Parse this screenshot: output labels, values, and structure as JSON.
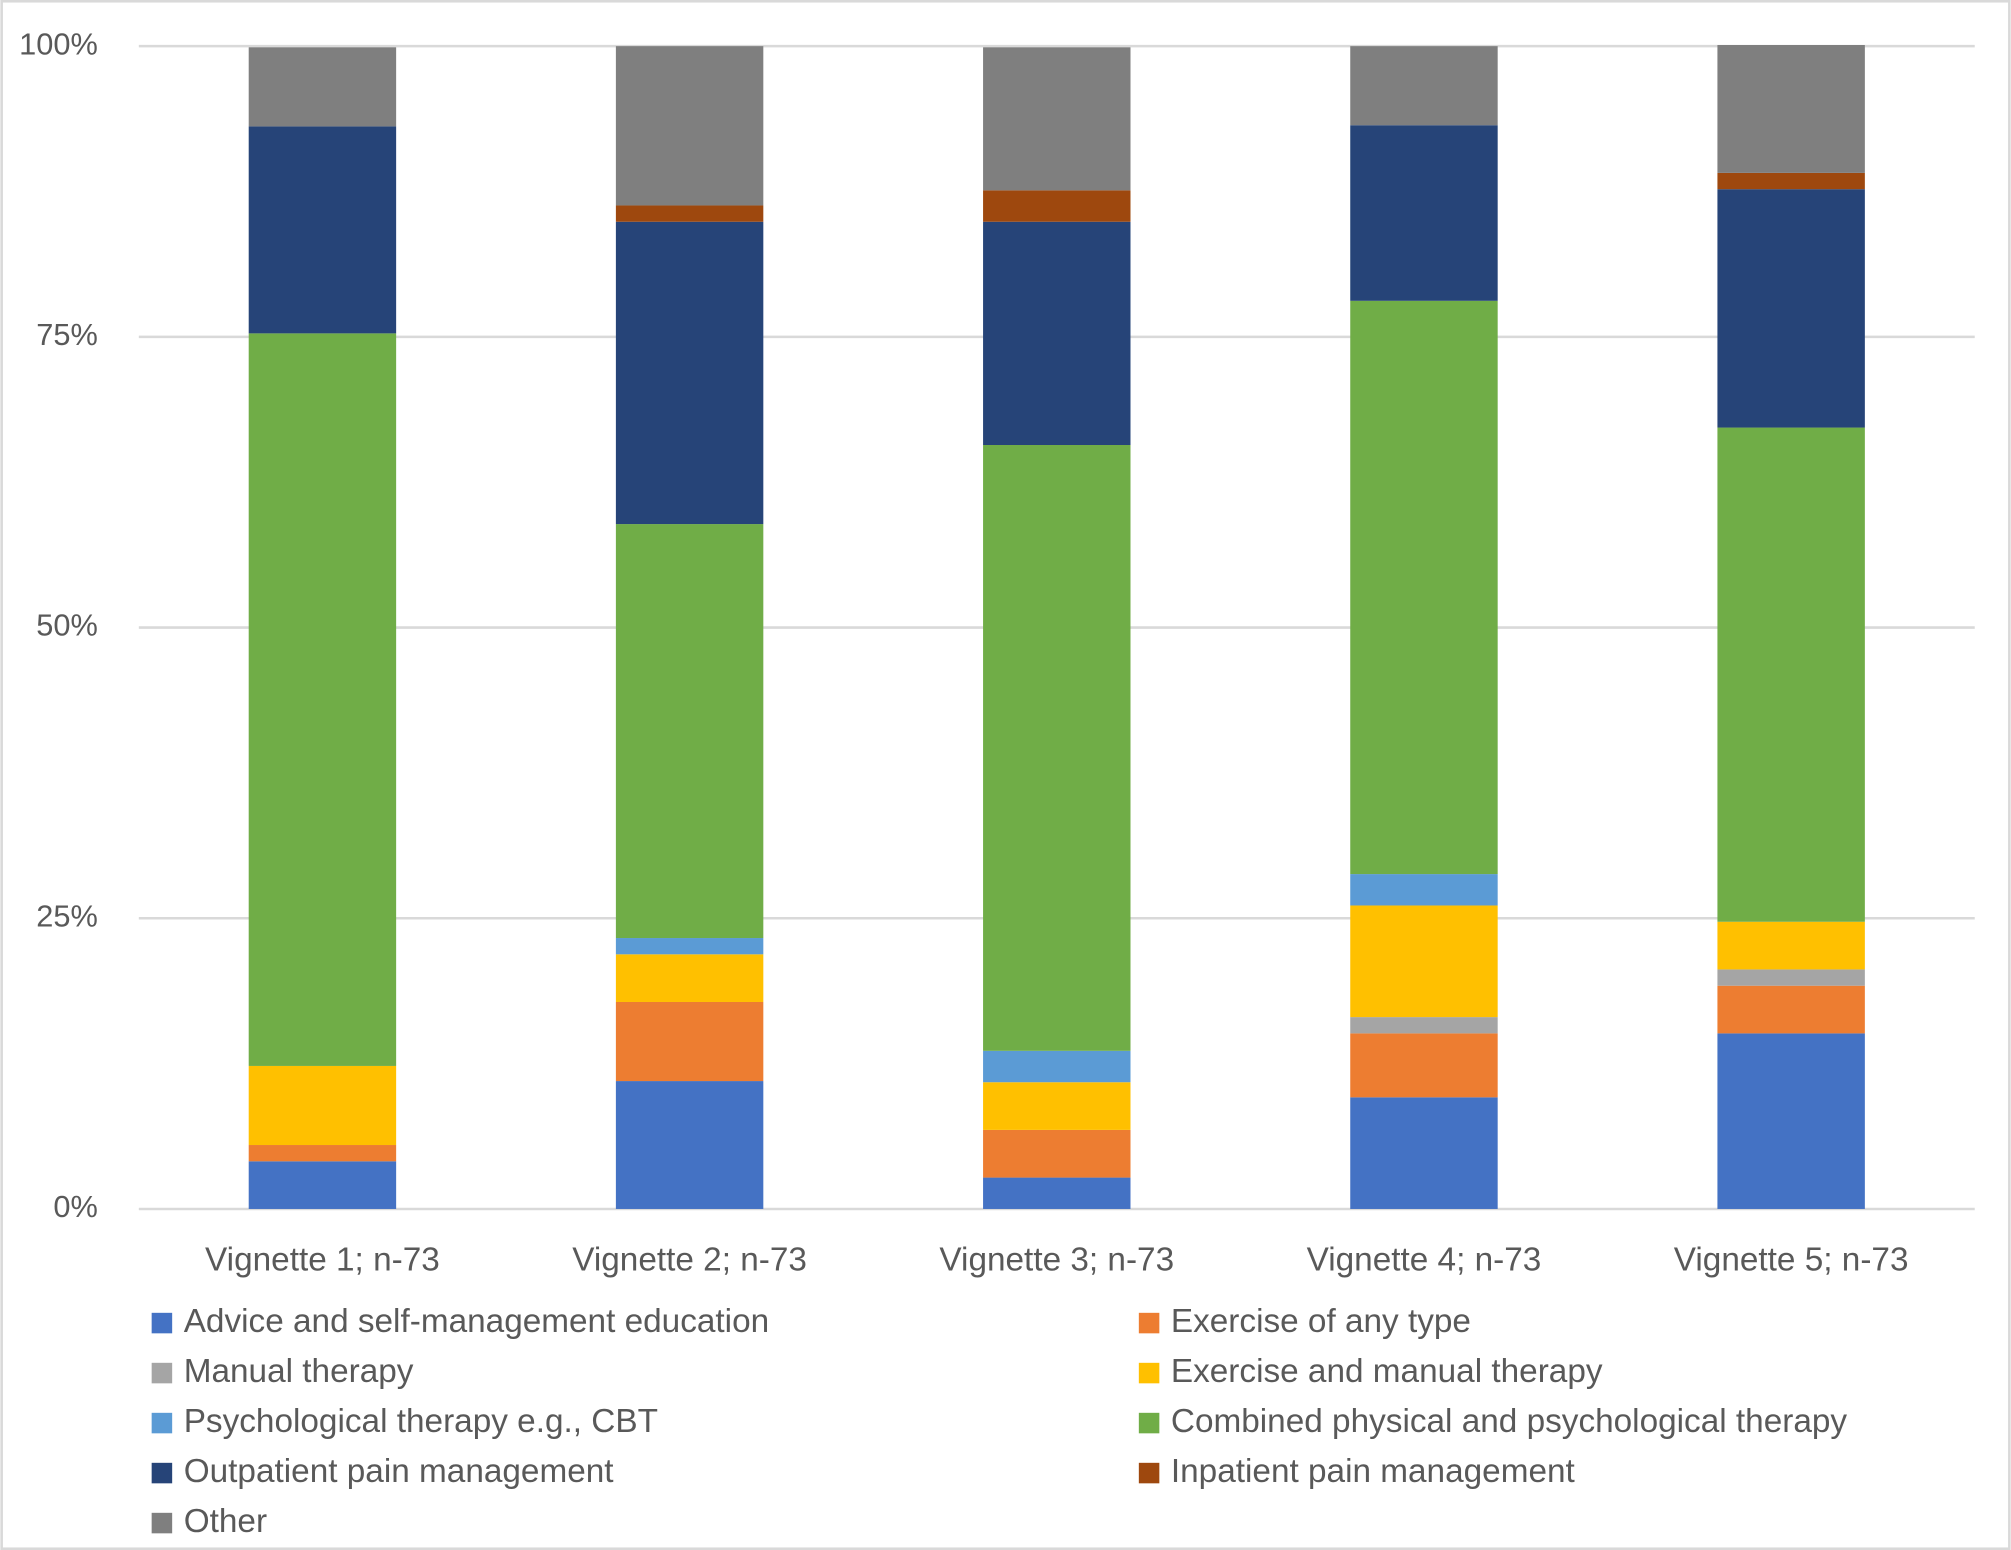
{
  "chart_data": {
    "type": "stacked_bar",
    "categories": [
      "Vignette 1; n-73",
      "Vignette 2; n-73",
      "Vignette 3; n-73",
      "Vignette 4; n-73",
      "Vignette 5; n-73"
    ],
    "series": [
      {
        "name": "Advice and self-management education",
        "color": "#4472c4",
        "values": [
          4.1,
          11.0,
          2.7,
          9.6,
          15.1
        ]
      },
      {
        "name": "Exercise of any type",
        "color": "#ed7d31",
        "values": [
          1.4,
          6.8,
          4.1,
          5.5,
          4.1
        ]
      },
      {
        "name": "Manual therapy",
        "color": "#a5a5a5",
        "values": [
          0,
          0,
          0,
          1.4,
          1.4
        ]
      },
      {
        "name": "Exercise and manual therapy",
        "color": "#ffc000",
        "values": [
          6.8,
          4.1,
          4.1,
          9.6,
          4.1
        ]
      },
      {
        "name": "Psychological therapy e.g., CBT",
        "color": "#5b9bd5",
        "values": [
          0,
          1.4,
          2.7,
          2.7,
          0
        ]
      },
      {
        "name": "Combined physical and psychological therapy",
        "color": "#70ad47",
        "values": [
          63.0,
          35.6,
          52.1,
          49.3,
          42.5
        ]
      },
      {
        "name": "Outpatient pain management",
        "color": "#264478",
        "values": [
          17.8,
          26.0,
          19.2,
          15.1,
          20.5
        ]
      },
      {
        "name": "Inpatient pain management",
        "color": "#9e480e",
        "values": [
          0,
          1.4,
          2.7,
          0,
          1.4
        ]
      },
      {
        "name": "Other",
        "color": "#7f7f7f",
        "values": [
          6.8,
          13.7,
          12.3,
          6.8,
          11.0
        ]
      }
    ],
    "ylim": [
      0,
      100
    ],
    "yticks": [
      {
        "value": 0,
        "label": "0%"
      },
      {
        "value": 25,
        "label": "25%"
      },
      {
        "value": 50,
        "label": "50%"
      },
      {
        "value": 75,
        "label": "75%"
      },
      {
        "value": 100,
        "label": "100%"
      }
    ],
    "grid": true,
    "legend": "bottom"
  }
}
